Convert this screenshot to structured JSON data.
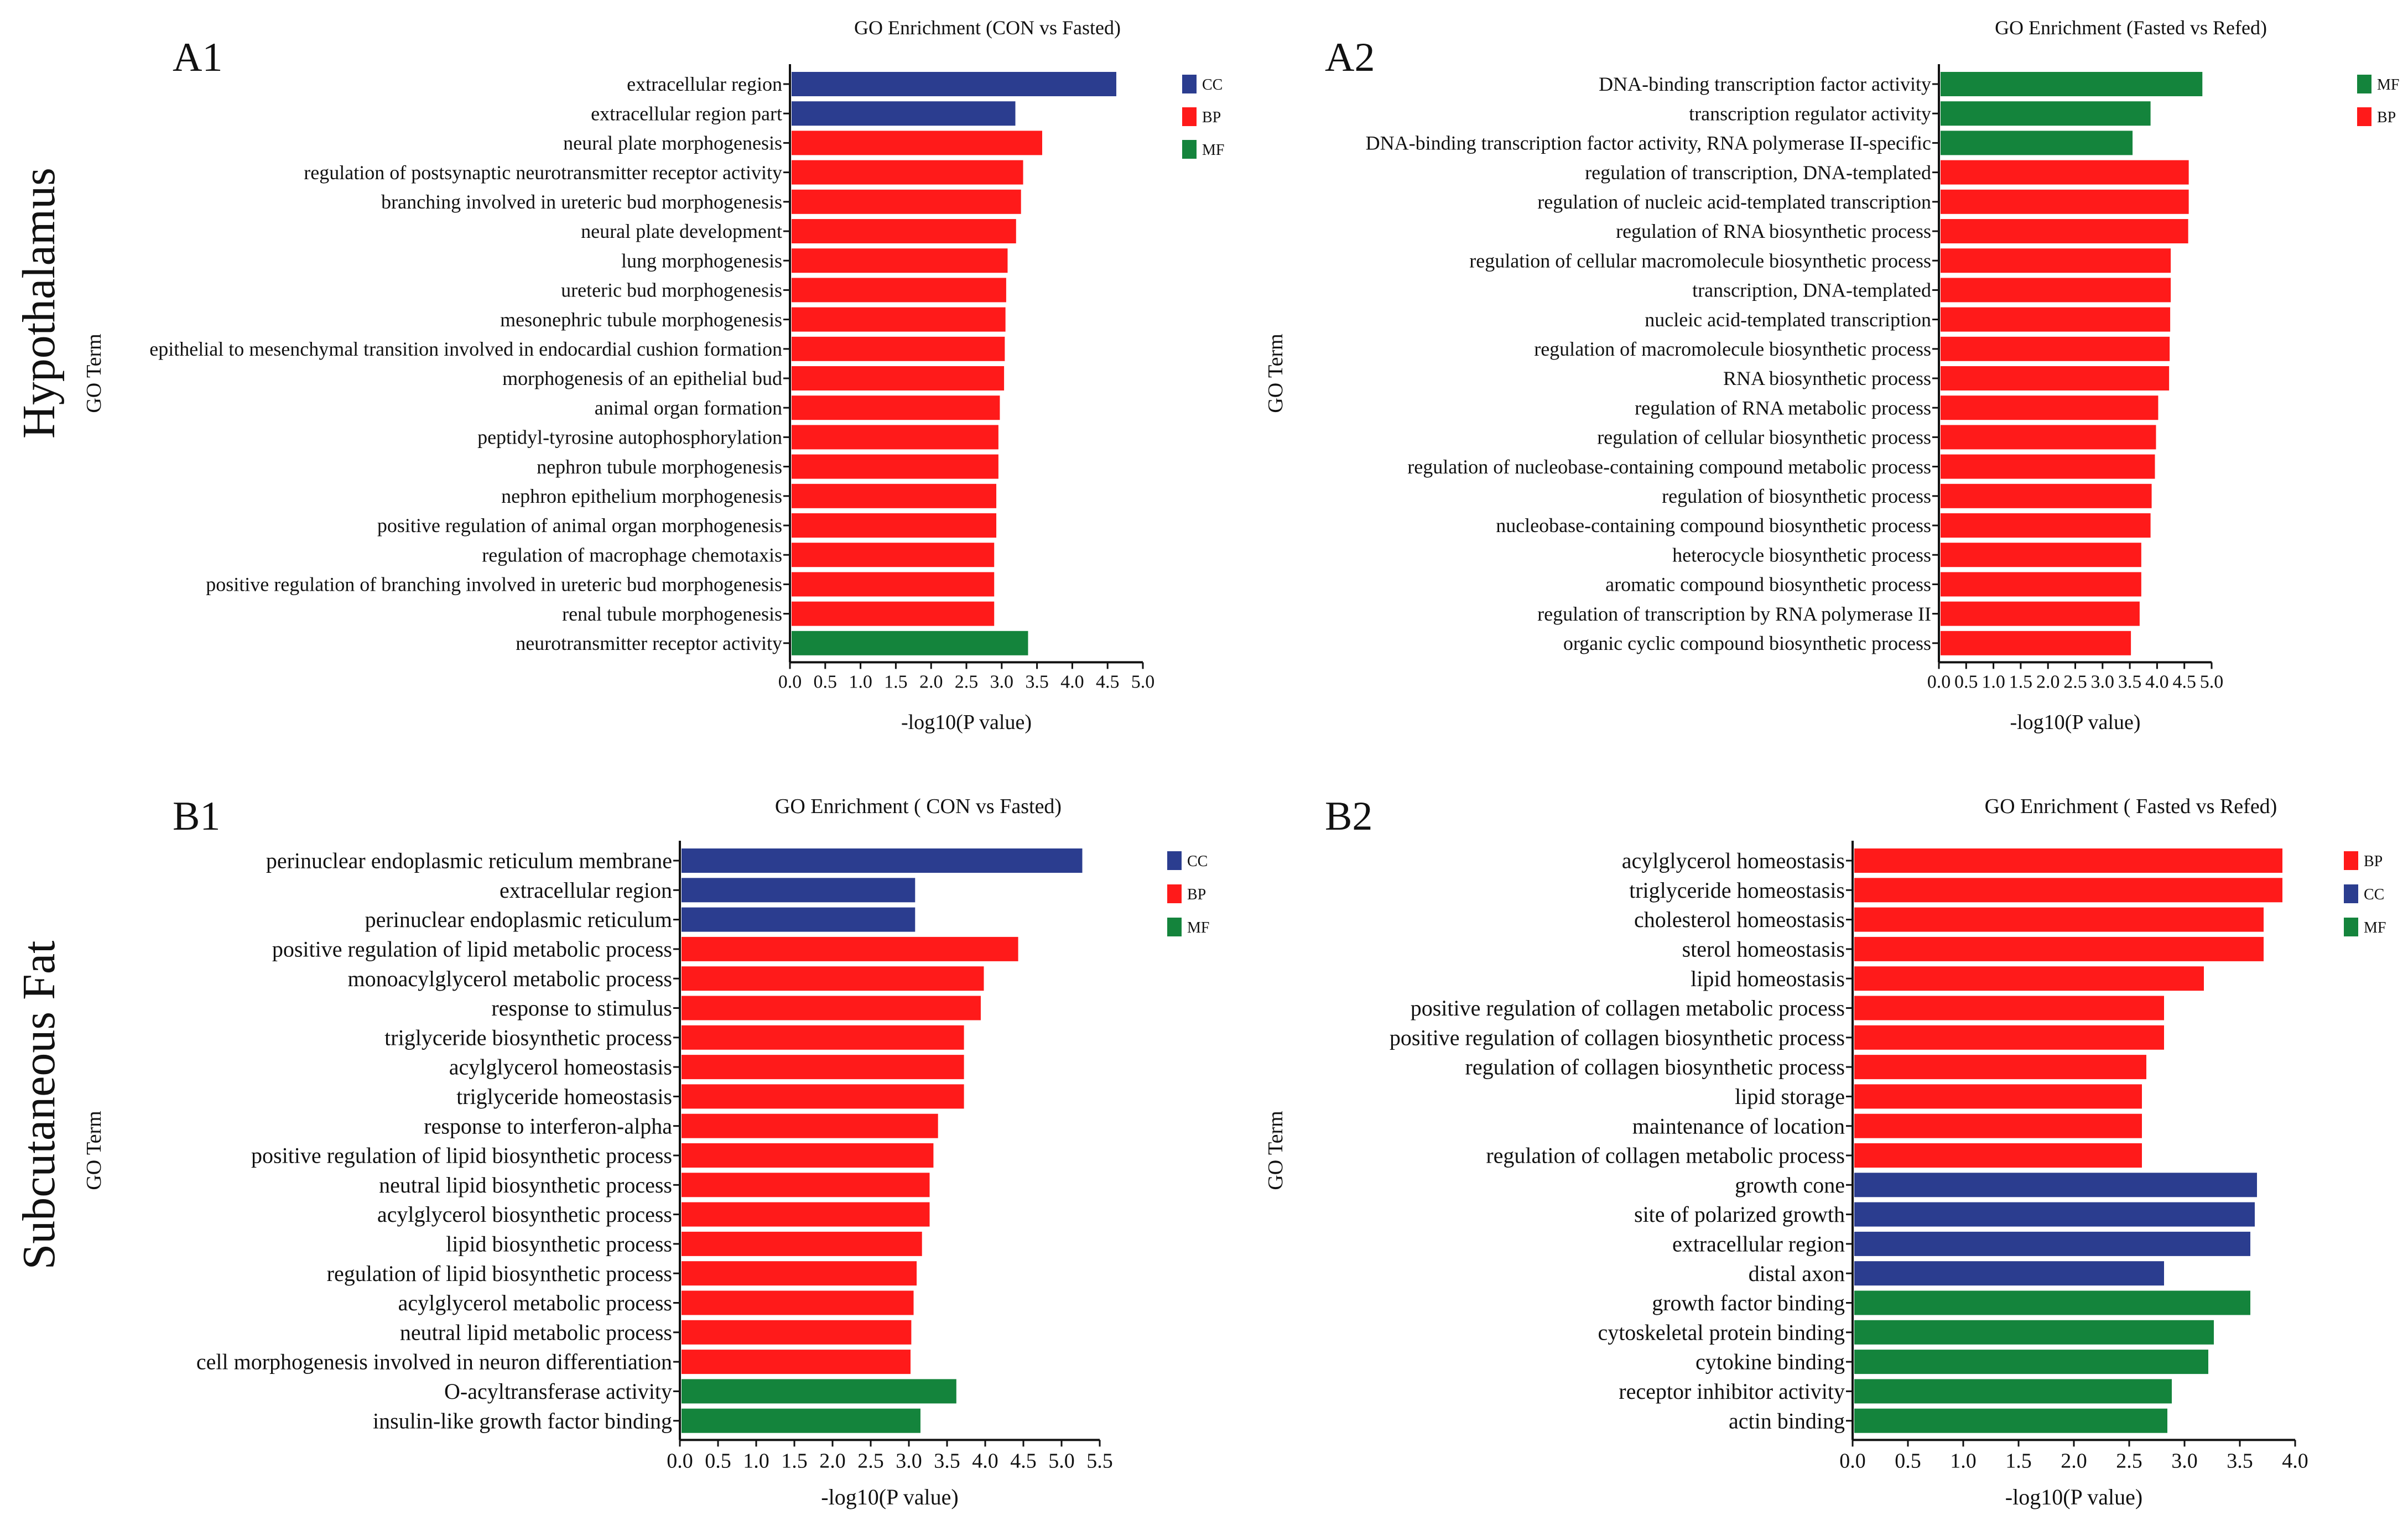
{
  "row_labels": [
    "Hypothalamus",
    "Subcutaneous Fat"
  ],
  "colors": {
    "CC": "#2b3d8f",
    "BP": "#ff1a1a",
    "MF": "#14843c"
  },
  "chart_data": [
    {
      "panel": "A1",
      "type": "bar",
      "orientation": "horizontal",
      "title": "GO Enrichment (CON vs Fasted)",
      "xlabel": "-log10(P value)",
      "ylabel": "GO Term",
      "xlim": [
        0,
        5.0
      ],
      "xticks": [
        "0.0",
        "0.5",
        "1.0",
        "1.5",
        "2.0",
        "2.5",
        "3.0",
        "3.5",
        "4.0",
        "4.5",
        "5.0"
      ],
      "legend": [
        "CC",
        "BP",
        "MF"
      ],
      "legend_position": "top-right",
      "categories": [
        "extracellular region",
        "extracellular region part",
        "neural plate morphogenesis",
        "regulation of postsynaptic neurotransmitter receptor activity",
        "branching involved in ureteric bud morphogenesis",
        "neural plate development",
        "lung morphogenesis",
        "ureteric bud morphogenesis",
        "mesonephric tubule morphogenesis",
        "epithelial to mesenchymal transition involved in endocardial cushion formation",
        "morphogenesis of an epithelial bud",
        "animal organ formation",
        "peptidyl-tyrosine autophosphorylation",
        "nephron tubule morphogenesis",
        "nephron epithelium morphogenesis",
        "positive regulation of animal organ morphogenesis",
        "regulation of macrophage chemotaxis",
        "positive regulation of branching involved in ureteric bud morphogenesis",
        "renal tubule morphogenesis",
        "neurotransmitter receptor activity"
      ],
      "values": [
        4.6,
        3.17,
        3.55,
        3.28,
        3.25,
        3.18,
        3.06,
        3.04,
        3.03,
        3.02,
        3.01,
        2.95,
        2.93,
        2.93,
        2.9,
        2.9,
        2.87,
        2.87,
        2.87,
        3.35
      ],
      "groups": [
        "CC",
        "CC",
        "BP",
        "BP",
        "BP",
        "BP",
        "BP",
        "BP",
        "BP",
        "BP",
        "BP",
        "BP",
        "BP",
        "BP",
        "BP",
        "BP",
        "BP",
        "BP",
        "BP",
        "MF"
      ]
    },
    {
      "panel": "A2",
      "type": "bar",
      "orientation": "horizontal",
      "title": "GO Enrichment (Fasted vs Refed)",
      "xlabel": "-log10(P value)",
      "ylabel": "GO Term",
      "xlim": [
        0,
        5.0
      ],
      "xticks": [
        "0.0",
        "0.5",
        "1.0",
        "1.5",
        "2.0",
        "2.5",
        "3.0",
        "3.5",
        "4.0",
        "4.5",
        "5.0"
      ],
      "legend": [
        "MF",
        "BP"
      ],
      "legend_position": "top-right",
      "categories": [
        "DNA-binding transcription factor activity",
        "transcription regulator activity",
        "DNA-binding transcription factor activity, RNA polymerase II-specific",
        "regulation of transcription, DNA-templated",
        "regulation of nucleic acid-templated transcription",
        "regulation of RNA biosynthetic process",
        "regulation of cellular macromolecule biosynthetic process",
        "transcription, DNA-templated",
        "nucleic acid-templated transcription",
        "regulation of macromolecule biosynthetic process",
        "RNA biosynthetic process",
        "regulation of RNA metabolic process",
        "regulation of cellular biosynthetic process",
        "regulation of nucleobase-containing compound metabolic process",
        "regulation of biosynthetic process",
        "nucleobase-containing compound biosynthetic process",
        "heterocycle biosynthetic process",
        "aromatic compound biosynthetic process",
        "regulation of transcription by RNA polymerase II",
        "organic cyclic compound biosynthetic process"
      ],
      "values": [
        4.8,
        3.85,
        3.52,
        4.55,
        4.55,
        4.54,
        4.22,
        4.22,
        4.21,
        4.2,
        4.19,
        3.99,
        3.95,
        3.93,
        3.87,
        3.85,
        3.68,
        3.68,
        3.65,
        3.49
      ],
      "groups": [
        "MF",
        "MF",
        "MF",
        "BP",
        "BP",
        "BP",
        "BP",
        "BP",
        "BP",
        "BP",
        "BP",
        "BP",
        "BP",
        "BP",
        "BP",
        "BP",
        "BP",
        "BP",
        "BP",
        "BP"
      ]
    },
    {
      "panel": "B1",
      "type": "bar",
      "orientation": "horizontal",
      "title": "GO Enrichment   ( CON vs Fasted)",
      "xlabel": "-log10(P value)",
      "ylabel": "GO Term",
      "xlim": [
        0,
        5.5
      ],
      "xticks": [
        "0.0",
        "0.5",
        "1.0",
        "1.5",
        "2.0",
        "2.5",
        "3.0",
        "3.5",
        "4.0",
        "4.5",
        "5.0",
        "5.5"
      ],
      "legend": [
        "CC",
        "BP",
        "MF"
      ],
      "legend_position": "top-right",
      "categories": [
        "perinuclear endoplasmic reticulum membrane",
        "extracellular region",
        "perinuclear endoplasmic reticulum",
        "positive regulation of lipid metabolic process",
        "monoacylglycerol metabolic process",
        "response to stimulus",
        "triglyceride biosynthetic process",
        "acylglycerol homeostasis",
        "triglyceride homeostasis",
        "response to interferon-alpha",
        "positive regulation of lipid biosynthetic process",
        "neutral lipid biosynthetic process",
        "acylglycerol biosynthetic process",
        "lipid biosynthetic process",
        "regulation of lipid biosynthetic process",
        "acylglycerol metabolic process",
        "neutral lipid metabolic process",
        "cell morphogenesis involved in neuron differentiation",
        "O-acyltransferase activity",
        "insulin-like growth factor binding"
      ],
      "values": [
        5.25,
        3.06,
        3.06,
        4.41,
        3.96,
        3.92,
        3.7,
        3.7,
        3.7,
        3.36,
        3.3,
        3.25,
        3.25,
        3.15,
        3.08,
        3.04,
        3.01,
        3.0,
        3.6,
        3.13
      ],
      "groups": [
        "CC",
        "CC",
        "CC",
        "BP",
        "BP",
        "BP",
        "BP",
        "BP",
        "BP",
        "BP",
        "BP",
        "BP",
        "BP",
        "BP",
        "BP",
        "BP",
        "BP",
        "BP",
        "MF",
        "MF"
      ]
    },
    {
      "panel": "B2",
      "type": "bar",
      "orientation": "horizontal",
      "title": "GO Enrichment   ( Fasted vs Refed)",
      "xlabel": "-log10(P value)",
      "ylabel": "GO Term",
      "xlim": [
        0,
        4.0
      ],
      "xticks": [
        "0.0",
        "0.5",
        "1.0",
        "1.5",
        "2.0",
        "2.5",
        "3.0",
        "3.5",
        "4.0"
      ],
      "legend": [
        "BP",
        "CC",
        "MF"
      ],
      "legend_position": "top-right",
      "categories": [
        "acylglycerol homeostasis",
        "triglyceride homeostasis",
        "cholesterol homeostasis",
        "sterol homeostasis",
        "lipid homeostasis",
        "positive regulation of collagen metabolic process",
        "positive regulation of collagen biosynthetic process",
        "regulation of collagen biosynthetic process",
        "lipid storage",
        "maintenance of location",
        "regulation of collagen metabolic process",
        "growth cone",
        "site of polarized growth",
        "extracellular region",
        "distal axon",
        "growth factor binding",
        "cytoskeletal protein binding",
        "cytokine binding",
        "receptor inhibitor activity",
        "actin binding"
      ],
      "values": [
        3.87,
        3.87,
        3.7,
        3.7,
        3.16,
        2.8,
        2.8,
        2.64,
        2.6,
        2.6,
        2.6,
        3.64,
        3.62,
        3.58,
        2.8,
        3.58,
        3.25,
        3.2,
        2.87,
        2.83
      ],
      "groups": [
        "BP",
        "BP",
        "BP",
        "BP",
        "BP",
        "BP",
        "BP",
        "BP",
        "BP",
        "BP",
        "BP",
        "CC",
        "CC",
        "CC",
        "CC",
        "MF",
        "MF",
        "MF",
        "MF",
        "MF"
      ]
    }
  ]
}
